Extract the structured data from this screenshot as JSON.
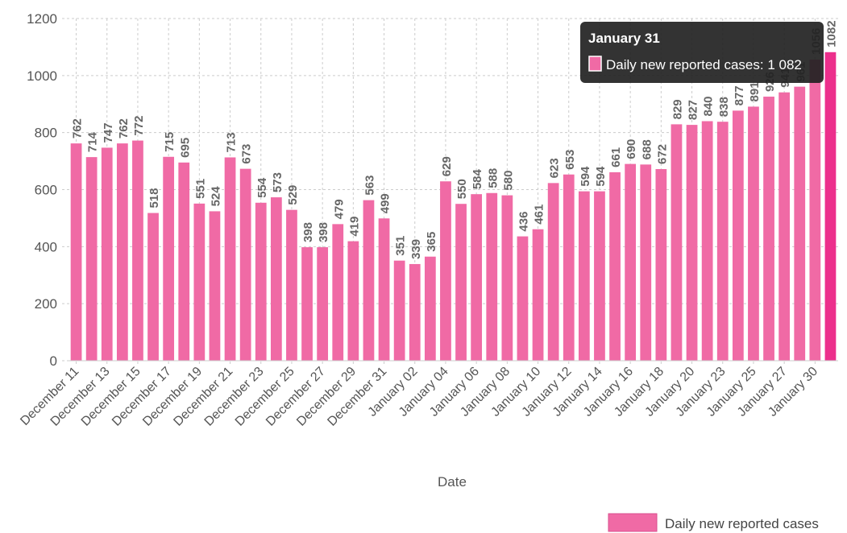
{
  "chart_data": {
    "type": "bar",
    "x_label": "Date",
    "categories": [
      "December 11",
      null,
      "December 13",
      null,
      "December 15",
      null,
      "December 17",
      null,
      "December 19",
      null,
      "December 21",
      null,
      "December 23",
      null,
      "December 25",
      null,
      "December 27",
      null,
      "December 29",
      null,
      "December 31",
      null,
      "January 02",
      null,
      "January 04",
      null,
      "January 06",
      null,
      "January 08",
      null,
      "January 10",
      null,
      "January 12",
      null,
      "January 14",
      null,
      "January 16",
      null,
      "January 18",
      null,
      "January 20",
      null,
      "January 23",
      null,
      "January 25",
      null,
      "January 27",
      null,
      "January 30",
      null
    ],
    "series": [
      {
        "name": "Daily new reported cases",
        "color": "#f06aa5",
        "highlight_color": "#ec2f8c",
        "values": [
          762,
          714,
          747,
          762,
          772,
          518,
          715,
          695,
          551,
          524,
          713,
          673,
          554,
          573,
          529,
          398,
          398,
          479,
          419,
          563,
          499,
          351,
          339,
          365,
          629,
          550,
          584,
          588,
          580,
          436,
          461,
          623,
          653,
          594,
          594,
          661,
          690,
          688,
          672,
          829,
          827,
          840,
          838,
          877,
          891,
          926,
          941,
          961,
          1056,
          1082
        ]
      }
    ],
    "ylim": [
      0,
      1200
    ],
    "yticks": [
      0,
      200,
      400,
      600,
      800,
      1000,
      1200
    ],
    "grid": true,
    "legend": "bottom-right",
    "tooltip": {
      "title": "January 31",
      "label": "Daily new reported cases: 1 082"
    }
  }
}
